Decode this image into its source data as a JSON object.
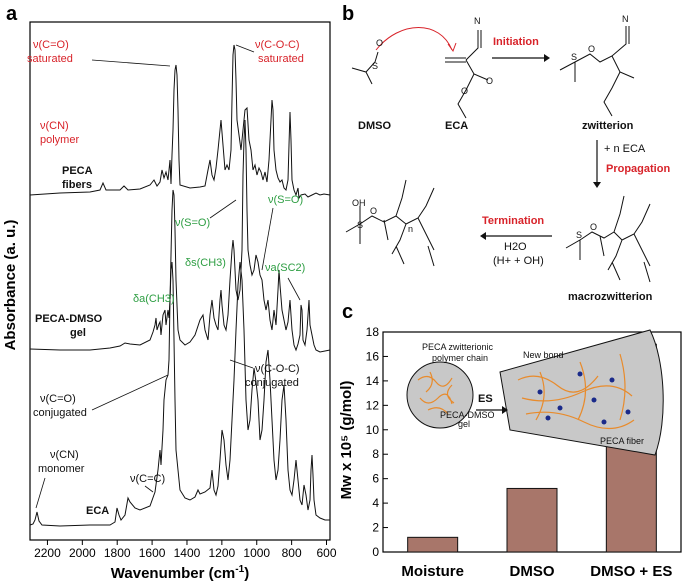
{
  "panels": {
    "a": "a",
    "b": "b",
    "c": "c"
  },
  "colors": {
    "red": "#d8232a",
    "green": "#2e9e43",
    "bar": "#a8766a",
    "fiber_fill": "#c8c8c8",
    "chain": "#e88b2c",
    "bond_dot": "#1a2a8a"
  },
  "panel_a": {
    "ylabel": "Absorbance (a. u.)",
    "xlabel": "Wavenumber (cm",
    "xlabel_sup": "-1",
    "xlabel_end": ")",
    "xticks": [
      "2200",
      "2000",
      "1800",
      "1600",
      "1400",
      "1200",
      "1000",
      "800",
      "600"
    ],
    "traces": [
      {
        "name_line1": "PECA",
        "name_line2": "fibers"
      },
      {
        "name_line1": "PECA-DMSO",
        "name_line2": "gel"
      },
      {
        "name_line1": "ECA",
        "name_line2": ""
      }
    ],
    "ann": {
      "co_sat_1": "ν(C=O)",
      "co_sat_2": "saturated",
      "coc_sat_1": "ν(C-O-C)",
      "coc_sat_2": "saturated",
      "cn_poly_1": "ν(CN)",
      "cn_poly_2": "polymer",
      "so_1": "ν(S=O)",
      "so_2": "ν(S=O)",
      "ds_ch3": "δs(CH3)",
      "da_ch3": "δa(CH3)",
      "va_sc2": "νa(SC2)",
      "coc_conj_1": "ν(C-O-C)",
      "coc_conj_2": "conjugated",
      "co_conj_1": "ν(C=O)",
      "co_conj_2": "conjugated",
      "cn_mono_1": "ν(CN)",
      "cn_mono_2": "monomer",
      "cc": "ν(C=C)"
    }
  },
  "panel_b": {
    "dmso": "DMSO",
    "eca": "ECA",
    "initiation": "Initiation",
    "zwitterion": "zwitterion",
    "plus_eca": "+ n ECA",
    "propagation": "Propagation",
    "termination": "Termination",
    "h2o": "H2O",
    "h_oh": "(H+ + OH)",
    "macrozwitterion": "macrozwitterion",
    "oh": "OH",
    "n_sub": "n"
  },
  "panel_c": {
    "ylabel": "Mw x 10⁵ (g/mol)",
    "yticks": [
      "0",
      "2",
      "4",
      "6",
      "8",
      "10",
      "12",
      "14",
      "16",
      "18"
    ],
    "chain_label_1": "PECA zwitterionic",
    "chain_label_2": "polymer chain",
    "new_bond": "New bond",
    "es": "ES",
    "gel_label_1": "PECA-DMSO",
    "gel_label_2": "gel",
    "fiber_label": "PECA fiber"
  },
  "chart_data": {
    "type": "bar",
    "categories": [
      "Moisture",
      "DMSO",
      "DMSO + ES"
    ],
    "values": [
      1.2,
      5.2,
      17.0
    ],
    "title": "",
    "xlabel": "",
    "ylabel": "Mw x 10⁵ (g/mol)",
    "ylim": [
      0,
      18
    ]
  }
}
